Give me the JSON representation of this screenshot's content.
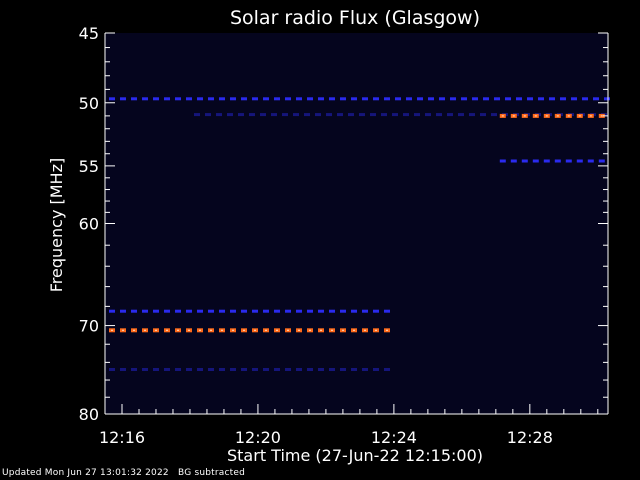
{
  "footer": {
    "updated": "Updated Mon Jun 27 13:01:32 2022",
    "note": "BG subtracted"
  },
  "colors": {
    "background": "#000000",
    "plot_bg": "#05051e",
    "axis": "#ffffff",
    "band_blue": "#2a2aee",
    "band_orange": "#ff6a1a",
    "band_orange_core": "#ffd0b0"
  },
  "chart_data": {
    "type": "heatmap",
    "title": "Solar radio Flux (Glasgow)",
    "xlabel": "Start Time (27-Jun-22 12:15:00)",
    "ylabel": "Frequency [MHz]",
    "x_unit": "minutes since 12:15:00",
    "xlim": [
      0.5,
      15.3
    ],
    "ylim": [
      45,
      80
    ],
    "y_scale": "log",
    "y_inverted": true,
    "xticks": [
      {
        "label": "12:16",
        "value": 1
      },
      {
        "label": "12:20",
        "value": 5
      },
      {
        "label": "12:24",
        "value": 9
      },
      {
        "label": "12:28",
        "value": 13
      }
    ],
    "yticks": [
      {
        "label": "45",
        "value": 45
      },
      {
        "label": "50",
        "value": 50
      },
      {
        "label": "55",
        "value": 55
      },
      {
        "label": "60",
        "value": 60
      },
      {
        "label": "70",
        "value": 70
      },
      {
        "label": "80",
        "value": 80
      }
    ],
    "bands": [
      {
        "freq": 49.7,
        "t_start": 0.5,
        "t_end": 15.3,
        "intensity": "medium",
        "color": "blue"
      },
      {
        "freq": 50.9,
        "t_start": 3.0,
        "t_end": 15.3,
        "intensity": "low",
        "color": "blue"
      },
      {
        "freq": 51.0,
        "t_start": 12.0,
        "t_end": 15.3,
        "intensity": "high",
        "color": "orange"
      },
      {
        "freq": 54.6,
        "t_start": 12.0,
        "t_end": 15.3,
        "intensity": "medium",
        "color": "blue"
      },
      {
        "freq": 68.5,
        "t_start": 0.5,
        "t_end": 9.0,
        "intensity": "medium",
        "color": "blue"
      },
      {
        "freq": 70.5,
        "t_start": 0.5,
        "t_end": 9.0,
        "intensity": "high",
        "color": "orange"
      },
      {
        "freq": 74.8,
        "t_start": 0.5,
        "t_end": 9.0,
        "intensity": "low",
        "color": "blue"
      }
    ]
  }
}
